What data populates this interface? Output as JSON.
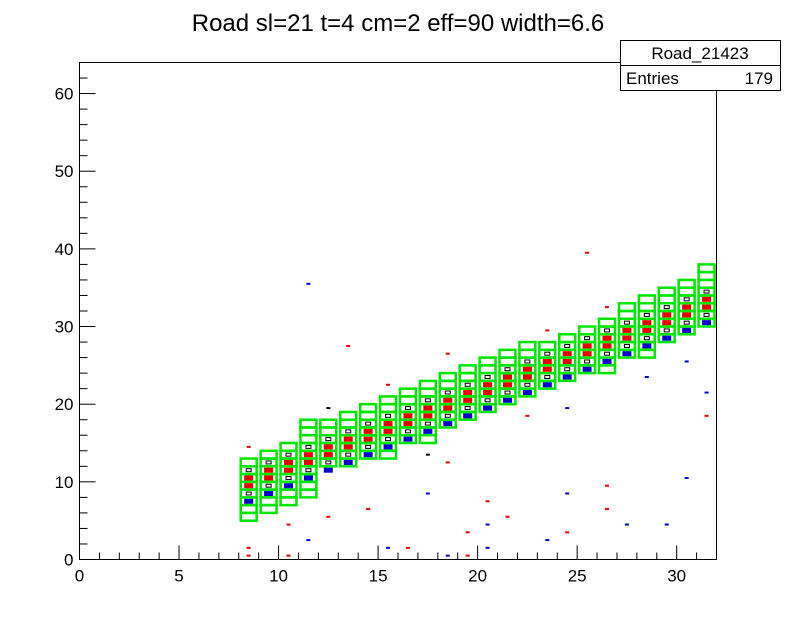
{
  "chart_data": {
    "type": "heatmap",
    "title": "Road sl=21 t=4 cm=2 eff=90 width=6.6",
    "xlabel": "",
    "ylabel": "",
    "xlim": [
      0,
      32
    ],
    "ylim": [
      0,
      64
    ],
    "x_ticks": [
      "0",
      "5",
      "10",
      "15",
      "20",
      "25",
      "30"
    ],
    "y_ticks": [
      "0",
      "10",
      "20",
      "30",
      "40",
      "50",
      "60"
    ],
    "grid": false,
    "stats_box": {
      "name": "Road_21423",
      "entries_label": "Entries",
      "entries_value": "179"
    },
    "road_band": {
      "color": "#00e600",
      "columns": [
        {
          "x": 8,
          "ylo": 5,
          "yhi": 13
        },
        {
          "x": 9,
          "ylo": 6,
          "yhi": 14
        },
        {
          "x": 10,
          "ylo": 7,
          "yhi": 15
        },
        {
          "x": 11,
          "ylo": 8,
          "yhi": 18
        },
        {
          "x": 12,
          "ylo": 12,
          "yhi": 18
        },
        {
          "x": 13,
          "ylo": 12,
          "yhi": 19
        },
        {
          "x": 14,
          "ylo": 13,
          "yhi": 20
        },
        {
          "x": 15,
          "ylo": 13,
          "yhi": 21
        },
        {
          "x": 16,
          "ylo": 15,
          "yhi": 22
        },
        {
          "x": 17,
          "ylo": 15,
          "yhi": 23
        },
        {
          "x": 18,
          "ylo": 17,
          "yhi": 24
        },
        {
          "x": 19,
          "ylo": 18,
          "yhi": 25
        },
        {
          "x": 20,
          "ylo": 19,
          "yhi": 26
        },
        {
          "x": 21,
          "ylo": 20,
          "yhi": 27
        },
        {
          "x": 22,
          "ylo": 21,
          "yhi": 28
        },
        {
          "x": 23,
          "ylo": 22,
          "yhi": 28
        },
        {
          "x": 24,
          "ylo": 23,
          "yhi": 29
        },
        {
          "x": 25,
          "ylo": 24,
          "yhi": 30
        },
        {
          "x": 26,
          "ylo": 24,
          "yhi": 31
        },
        {
          "x": 27,
          "ylo": 26,
          "yhi": 33
        },
        {
          "x": 28,
          "ylo": 26,
          "yhi": 34
        },
        {
          "x": 29,
          "ylo": 28,
          "yhi": 35
        },
        {
          "x": 30,
          "ylo": 29,
          "yhi": 36
        },
        {
          "x": 31,
          "ylo": 30,
          "yhi": 38
        }
      ]
    },
    "core_band": {
      "columns": [
        {
          "x": 8,
          "ylo": 7,
          "yhi": 12
        },
        {
          "x": 9,
          "ylo": 8,
          "yhi": 13
        },
        {
          "x": 10,
          "ylo": 9,
          "yhi": 14
        },
        {
          "x": 11,
          "ylo": 10,
          "yhi": 15
        },
        {
          "x": 12,
          "ylo": 11,
          "yhi": 16
        },
        {
          "x": 13,
          "ylo": 12,
          "yhi": 17
        },
        {
          "x": 14,
          "ylo": 13,
          "yhi": 18
        },
        {
          "x": 15,
          "ylo": 14,
          "yhi": 19
        },
        {
          "x": 16,
          "ylo": 15,
          "yhi": 20
        },
        {
          "x": 17,
          "ylo": 16,
          "yhi": 21
        },
        {
          "x": 18,
          "ylo": 17,
          "yhi": 22
        },
        {
          "x": 19,
          "ylo": 18,
          "yhi": 23
        },
        {
          "x": 20,
          "ylo": 19,
          "yhi": 24
        },
        {
          "x": 21,
          "ylo": 20,
          "yhi": 25
        },
        {
          "x": 22,
          "ylo": 21,
          "yhi": 26
        },
        {
          "x": 23,
          "ylo": 22,
          "yhi": 27
        },
        {
          "x": 24,
          "ylo": 23,
          "yhi": 28
        },
        {
          "x": 25,
          "ylo": 24,
          "yhi": 29
        },
        {
          "x": 26,
          "ylo": 25,
          "yhi": 30
        },
        {
          "x": 27,
          "ylo": 26,
          "yhi": 31
        },
        {
          "x": 28,
          "ylo": 27,
          "yhi": 32
        },
        {
          "x": 29,
          "ylo": 28,
          "yhi": 33
        },
        {
          "x": 30,
          "ylo": 29,
          "yhi": 34
        },
        {
          "x": 31,
          "ylo": 30,
          "yhi": 35
        }
      ],
      "row_colors": [
        "#0000cc",
        "#000000",
        "#e60000",
        "#e60000",
        "#000000"
      ]
    },
    "scatter_points": [
      {
        "x": 8,
        "y": 1.5,
        "color": "#e60000"
      },
      {
        "x": 8,
        "y": 0.5,
        "color": "#e60000"
      },
      {
        "x": 8,
        "y": 14.5,
        "color": "#e60000"
      },
      {
        "x": 10,
        "y": 4.5,
        "color": "#e60000"
      },
      {
        "x": 10,
        "y": 0.5,
        "color": "#e60000"
      },
      {
        "x": 11,
        "y": 35.5,
        "color": "#0000cc"
      },
      {
        "x": 11,
        "y": 2.5,
        "color": "#0000cc"
      },
      {
        "x": 12,
        "y": 19.5,
        "color": "#000000"
      },
      {
        "x": 12,
        "y": 5.5,
        "color": "#e60000"
      },
      {
        "x": 13,
        "y": 27.5,
        "color": "#e60000"
      },
      {
        "x": 14,
        "y": 6.5,
        "color": "#e60000"
      },
      {
        "x": 15,
        "y": 22.5,
        "color": "#e60000"
      },
      {
        "x": 15,
        "y": 1.5,
        "color": "#0000cc"
      },
      {
        "x": 16,
        "y": 1.5,
        "color": "#e60000"
      },
      {
        "x": 17,
        "y": 8.5,
        "color": "#0000cc"
      },
      {
        "x": 17,
        "y": 13.5,
        "color": "#000000"
      },
      {
        "x": 18,
        "y": 12.5,
        "color": "#e60000"
      },
      {
        "x": 18,
        "y": 26.5,
        "color": "#e60000"
      },
      {
        "x": 18,
        "y": 0.5,
        "color": "#0000cc"
      },
      {
        "x": 19,
        "y": 3.5,
        "color": "#e60000"
      },
      {
        "x": 19,
        "y": 0.5,
        "color": "#e60000"
      },
      {
        "x": 20,
        "y": 7.5,
        "color": "#e60000"
      },
      {
        "x": 20,
        "y": 4.5,
        "color": "#0000cc"
      },
      {
        "x": 20,
        "y": 1.5,
        "color": "#0000cc"
      },
      {
        "x": 21,
        "y": 5.5,
        "color": "#e60000"
      },
      {
        "x": 22,
        "y": 18.5,
        "color": "#e60000"
      },
      {
        "x": 23,
        "y": 2.5,
        "color": "#0000cc"
      },
      {
        "x": 23,
        "y": 29.5,
        "color": "#e60000"
      },
      {
        "x": 24,
        "y": 8.5,
        "color": "#0000cc"
      },
      {
        "x": 24,
        "y": 3.5,
        "color": "#e60000"
      },
      {
        "x": 24,
        "y": 19.5,
        "color": "#0000cc"
      },
      {
        "x": 25,
        "y": 39.5,
        "color": "#e60000"
      },
      {
        "x": 26,
        "y": 9.5,
        "color": "#e60000"
      },
      {
        "x": 26,
        "y": 6.5,
        "color": "#e60000"
      },
      {
        "x": 26,
        "y": 32.5,
        "color": "#e60000"
      },
      {
        "x": 27,
        "y": 4.5,
        "color": "#0000cc"
      },
      {
        "x": 28,
        "y": 23.5,
        "color": "#0000cc"
      },
      {
        "x": 29,
        "y": 4.5,
        "color": "#0000cc"
      },
      {
        "x": 30,
        "y": 10.5,
        "color": "#0000cc"
      },
      {
        "x": 30,
        "y": 25.5,
        "color": "#0000cc"
      },
      {
        "x": 31,
        "y": 21.5,
        "color": "#0000cc"
      },
      {
        "x": 31,
        "y": 18.5,
        "color": "#e60000"
      }
    ]
  }
}
